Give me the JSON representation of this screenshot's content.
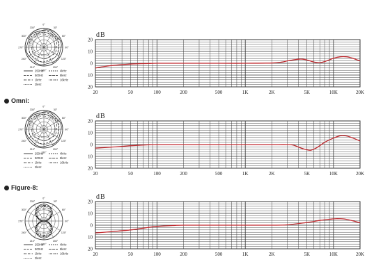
{
  "labels": {
    "omni": "Omni:",
    "figure8": "Figure-8:"
  },
  "polar_legend": {
    "solid_250": "250Hz",
    "dash_500": "500Hz",
    "dashdot_1k": "1kHz",
    "dot_2k": "2kHz",
    "r_4k": "4kHz",
    "r_8k": "8kHz",
    "r_16k": "16kHz"
  },
  "colors": {
    "curve": "#c0282d",
    "grid": "#333333",
    "axis_text": "#222222"
  },
  "chart_data": [
    {
      "type": "line",
      "ylabel": "dB",
      "xscale": "log",
      "xlim": [
        20,
        20000
      ],
      "ylim": [
        -20,
        20
      ],
      "grid": true,
      "x_ticks": [
        "20",
        "50",
        "100",
        "200",
        "500",
        "1K",
        "2K",
        "5K",
        "10K",
        "20K"
      ],
      "y_ticks": [
        "20",
        "10",
        "0",
        "10",
        "20"
      ],
      "series": [
        {
          "x": [
            20,
            30,
            50,
            80,
            100,
            200,
            500,
            1000,
            2000,
            2600,
            3000,
            4000,
            4500,
            5000,
            6000,
            7000,
            8000,
            10000,
            12000,
            14000,
            16000,
            20000
          ],
          "y": [
            -4,
            -2,
            -0.7,
            -0.2,
            0,
            0,
            0,
            0,
            0.2,
            1,
            2,
            3.4,
            3.4,
            2.8,
            1,
            0.5,
            1.5,
            4.2,
            5.5,
            5.5,
            4.5,
            2
          ]
        }
      ]
    },
    {
      "type": "line",
      "ylabel": "dB",
      "xscale": "log",
      "xlim": [
        20,
        20000
      ],
      "ylim": [
        -20,
        20
      ],
      "grid": true,
      "x_ticks": [
        "20",
        "50",
        "100",
        "200",
        "500",
        "1K",
        "2K",
        "5K",
        "10K",
        "20K"
      ],
      "y_ticks": [
        "20",
        "10",
        "0",
        "10",
        "20"
      ],
      "series": [
        {
          "x": [
            20,
            30,
            50,
            80,
            100,
            200,
            500,
            1000,
            2000,
            3000,
            3500,
            4500,
            5500,
            6500,
            8000,
            10000,
            12000,
            14000,
            16000,
            20000
          ],
          "y": [
            -3,
            -2.2,
            -1,
            -0.2,
            0,
            0,
            0,
            0,
            0,
            0,
            -0.5,
            -3.5,
            -4.8,
            -2.5,
            2,
            5.5,
            7.5,
            7.3,
            6,
            3
          ]
        }
      ]
    },
    {
      "type": "line",
      "ylabel": "dB",
      "xscale": "log",
      "xlim": [
        20,
        20000
      ],
      "ylim": [
        -20,
        20
      ],
      "grid": true,
      "x_ticks": [
        "20",
        "50",
        "100",
        "200",
        "500",
        "1K",
        "2K",
        "5K",
        "10K",
        "20K"
      ],
      "y_ticks": [
        "20",
        "10",
        "0",
        "10",
        "20"
      ],
      "series": [
        {
          "x": [
            20,
            30,
            50,
            70,
            100,
            150,
            200,
            500,
            1000,
            2000,
            3000,
            5000,
            7000,
            9000,
            11000,
            13000,
            16000,
            20000
          ],
          "y": [
            -6.5,
            -5.5,
            -4,
            -2.5,
            -1,
            -0.3,
            0,
            0,
            0,
            0,
            0.3,
            2.3,
            4,
            5,
            5.5,
            5.3,
            4,
            2
          ]
        }
      ]
    }
  ]
}
